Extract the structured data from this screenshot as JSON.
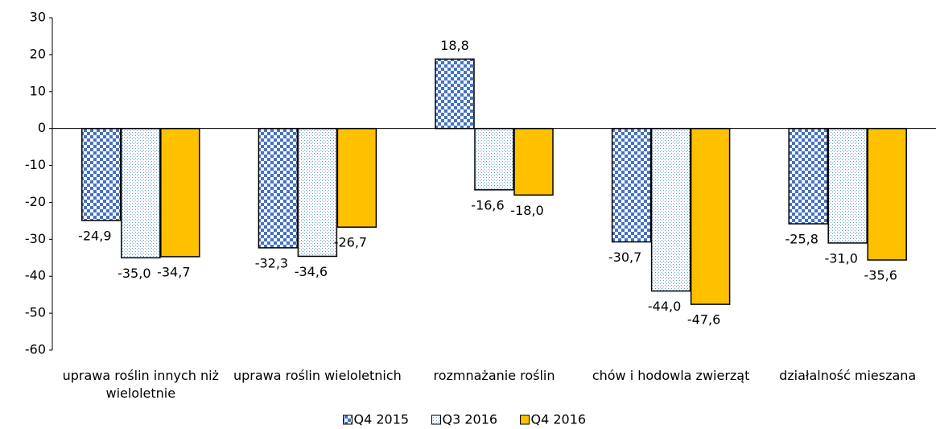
{
  "chart_data": {
    "type": "bar",
    "categories": [
      "uprawa roślin innych niż wieloletnie",
      "uprawa roślin wieloletnich",
      "rozmnażanie roślin",
      "chów i hodowla zwierząt",
      "działalność mieszana"
    ],
    "series": [
      {
        "name": "Q4 2015",
        "color": "#4472c4",
        "pattern": "checkerboard",
        "values": [
          -24.9,
          -32.3,
          18.8,
          -30.7,
          -25.8
        ],
        "value_labels": [
          "-24,9",
          "-32,3",
          "18,8",
          "-30,7",
          "-25,8"
        ]
      },
      {
        "name": "Q3 2016",
        "color": "#5b9bd5",
        "pattern": "dots",
        "values": [
          -35.0,
          -34.6,
          -16.6,
          -44.0,
          -31.0
        ],
        "value_labels": [
          "-35,0",
          "-34,6",
          "-16,6",
          "-44,0",
          "-31,0"
        ]
      },
      {
        "name": "Q4 2016",
        "color": "#ffc000",
        "pattern": "solid",
        "values": [
          -34.7,
          -26.7,
          -18.0,
          -47.6,
          -35.6
        ],
        "value_labels": [
          "-34,7",
          "-26,7",
          "-18,0",
          "-47,6",
          "-35,6"
        ]
      }
    ],
    "ylim": [
      -60,
      30
    ],
    "yticks": [
      -60,
      -50,
      -40,
      -30,
      -20,
      -10,
      0,
      10,
      20,
      30
    ],
    "grid": false,
    "legend": "bottom"
  }
}
